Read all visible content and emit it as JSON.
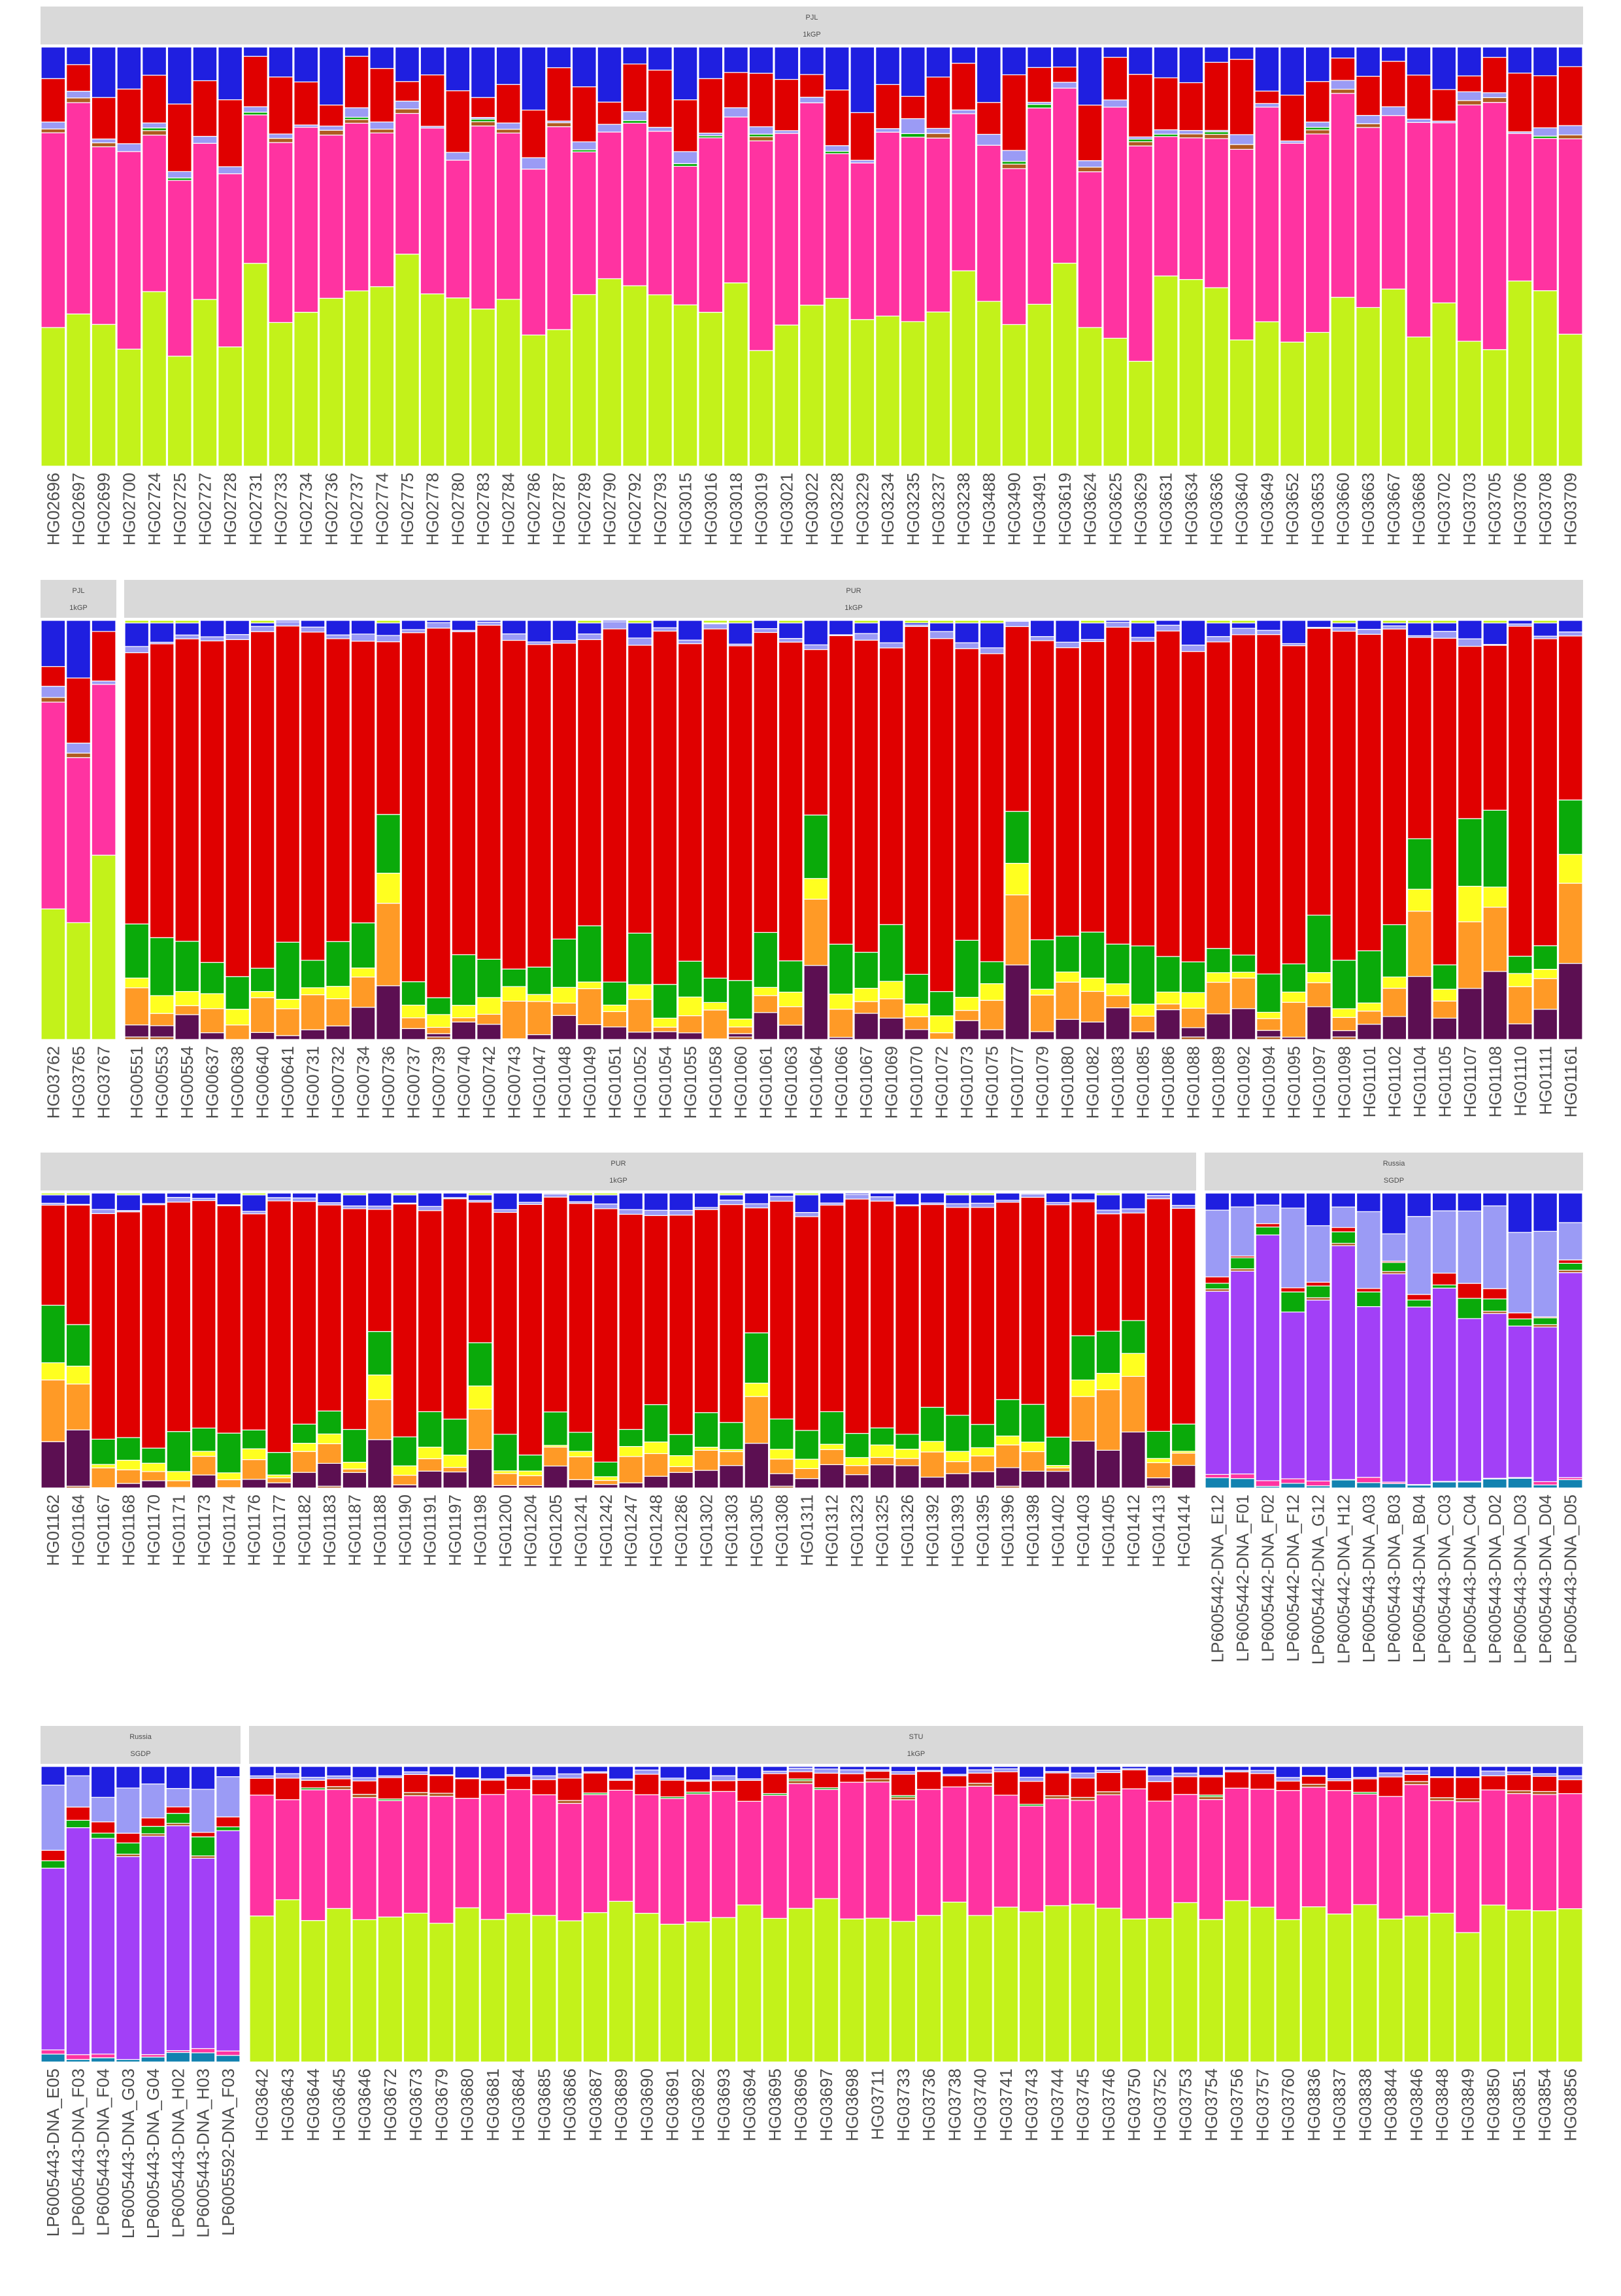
{
  "chart_data": {
    "type": "bar",
    "stacked": true,
    "normalized_to": 1,
    "ylim": [
      0,
      1
    ],
    "grid": false,
    "legend": "none",
    "component_colors": [
      "#c3f21a",
      "#ff33a1",
      "#e00000",
      "#1f1fe0",
      "#9b9bf5",
      "#a240f7",
      "#0aaa0a",
      "#ff9a26",
      "#ffff20",
      "#5c0f52",
      "#b05a20",
      "#1282b0"
    ],
    "panels": [
      {
        "id": "r1-pjl",
        "group": "PJL",
        "source": "1kGP",
        "samples": [
          "HG02696",
          "HG02697",
          "HG02699",
          "HG02700",
          "HG02724",
          "HG02725",
          "HG02727",
          "HG02728",
          "HG02731",
          "HG02733",
          "HG02734",
          "HG02736",
          "HG02737",
          "HG02774",
          "HG02775",
          "HG02778",
          "HG02780",
          "HG02783",
          "HG02784",
          "HG02786",
          "HG02787",
          "HG02789",
          "HG02790",
          "HG02792",
          "HG02793",
          "HG03015",
          "HG03016",
          "HG03018",
          "HG03019",
          "HG03021",
          "HG03022",
          "HG03228",
          "HG03229",
          "HG03234",
          "HG03235",
          "HG03237",
          "HG03238",
          "HG03488",
          "HG03490",
          "HG03491",
          "HG03619",
          "HG03624",
          "HG03625",
          "HG03629",
          "HG03631",
          "HG03634",
          "HG03636",
          "HG03640",
          "HG03649",
          "HG03652",
          "HG03653",
          "HG03660",
          "HG03663",
          "HG03667",
          "HG03668",
          "HG03702",
          "HG03703",
          "HG03705",
          "HG03706",
          "HG03708",
          "HG03709"
        ],
        "profile": [
          0.36,
          0.44,
          0.07,
          0.11,
          0.02
        ],
        "variation": "pjl"
      },
      {
        "id": "r2-pjl",
        "group": "PJL",
        "source": "1kGP",
        "samples": [
          "HG03762",
          "HG03765",
          "HG03767"
        ],
        "profile": [
          0.36,
          0.44,
          0.07,
          0.11,
          0.02
        ],
        "variation": "pjl"
      },
      {
        "id": "r2-pur",
        "group": "PUR",
        "source": "1kGP",
        "samples": [
          "HG00551",
          "HG00553",
          "HG00554",
          "HG00637",
          "HG00638",
          "HG00640",
          "HG00641",
          "HG00731",
          "HG00732",
          "HG00734",
          "HG00736",
          "HG00737",
          "HG00739",
          "HG00740",
          "HG00742",
          "HG00743",
          "HG01047",
          "HG01048",
          "HG01049",
          "HG01051",
          "HG01052",
          "HG01054",
          "HG01055",
          "HG01058",
          "HG01060",
          "HG01061",
          "HG01063",
          "HG01064",
          "HG01066",
          "HG01067",
          "HG01069",
          "HG01070",
          "HG01072",
          "HG01073",
          "HG01075",
          "HG01077",
          "HG01079",
          "HG01080",
          "HG01082",
          "HG01083",
          "HG01085",
          "HG01086",
          "HG01088",
          "HG01089",
          "HG01092",
          "HG01094",
          "HG01095",
          "HG01097",
          "HG01098",
          "HG01101",
          "HG01102",
          "HG01104",
          "HG01105",
          "HG01107",
          "HG01108",
          "HG01110",
          "HG01111",
          "HG01161"
        ],
        "profile": [
          0.0,
          0.0,
          0.76,
          0.03,
          0.01,
          0.0,
          0.09,
          0.05,
          0.02,
          0.04
        ],
        "variation": "pur"
      },
      {
        "id": "r3-pur",
        "group": "PUR",
        "source": "1kGP",
        "samples": [
          "HG01162",
          "HG01164",
          "HG01167",
          "HG01168",
          "HG01170",
          "HG01171",
          "HG01173",
          "HG01174",
          "HG01176",
          "HG01177",
          "HG01182",
          "HG01183",
          "HG01187",
          "HG01188",
          "HG01190",
          "HG01191",
          "HG01197",
          "HG01198",
          "HG01200",
          "HG01204",
          "HG01205",
          "HG01241",
          "HG01242",
          "HG01247",
          "HG01248",
          "HG01286",
          "HG01302",
          "HG01303",
          "HG01305",
          "HG01308",
          "HG01311",
          "HG01312",
          "HG01323",
          "HG01325",
          "HG01326",
          "HG01392",
          "HG01393",
          "HG01395",
          "HG01396",
          "HG01398",
          "HG01402",
          "HG01403",
          "HG01405",
          "HG01412",
          "HG01413",
          "HG01414"
        ],
        "profile": [
          0.0,
          0.0,
          0.76,
          0.03,
          0.01,
          0.0,
          0.09,
          0.05,
          0.02,
          0.04
        ],
        "variation": "pur"
      },
      {
        "id": "r3-russia",
        "group": "Russia",
        "source": "SGDP",
        "samples": [
          "LP6005442-DNA_E12",
          "LP6005442-DNA_F01",
          "LP6005442-DNA_F02",
          "LP6005442-DNA_F12",
          "LP6005442-DNA_G12",
          "LP6005442-DNA_H12",
          "LP6005443-DNA_A03",
          "LP6005443-DNA_B03",
          "LP6005443-DNA_B04",
          "LP6005443-DNA_C03",
          "LP6005443-DNA_C04",
          "LP6005443-DNA_D02",
          "LP6005443-DNA_D03",
          "LP6005443-DNA_D04",
          "LP6005443-DNA_D05"
        ],
        "profile": [
          0.0,
          0.01,
          0.03,
          0.1,
          0.2,
          0.6,
          0.04,
          0.0,
          0.0,
          0.0,
          0.0,
          0.02
        ],
        "variation": "rus"
      },
      {
        "id": "r4-russia",
        "group": "Russia",
        "source": "SGDP",
        "samples": [
          "LP6005443-DNA_E05",
          "LP6005443-DNA_F03",
          "LP6005443-DNA_F04",
          "LP6005443-DNA_G03",
          "LP6005443-DNA_G04",
          "LP6005443-DNA_H02",
          "LP6005443-DNA_H03",
          "LP6005592-DNA_F03"
        ],
        "profile": [
          0.0,
          0.01,
          0.05,
          0.13,
          0.15,
          0.6,
          0.04,
          0.0,
          0.0,
          0.0,
          0.0,
          0.02
        ],
        "variation": "rus"
      },
      {
        "id": "r4-stu",
        "group": "STU",
        "source": "1kGP",
        "samples": [
          "HG03642",
          "HG03643",
          "HG03644",
          "HG03645",
          "HG03646",
          "HG03672",
          "HG03673",
          "HG03679",
          "HG03680",
          "HG03681",
          "HG03684",
          "HG03685",
          "HG03686",
          "HG03687",
          "HG03689",
          "HG03690",
          "HG03691",
          "HG03692",
          "HG03693",
          "HG03694",
          "HG03695",
          "HG03696",
          "HG03697",
          "HG03698",
          "HG03711",
          "HG03733",
          "HG03736",
          "HG03738",
          "HG03740",
          "HG03741",
          "HG03743",
          "HG03744",
          "HG03745",
          "HG03746",
          "HG03750",
          "HG03752",
          "HG03753",
          "HG03754",
          "HG03756",
          "HG03757",
          "HG03760",
          "HG03836",
          "HG03837",
          "HG03838",
          "HG03844",
          "HG03846",
          "HG03848",
          "HG03849",
          "HG03850",
          "HG03851",
          "HG03854",
          "HG03856"
        ],
        "profile": [
          0.5,
          0.42,
          0.05,
          0.03
        ],
        "variation": "stu"
      }
    ]
  }
}
